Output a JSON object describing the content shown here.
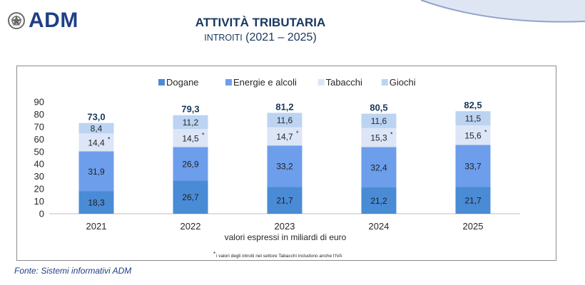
{
  "brand": {
    "logo_text": "ADM"
  },
  "header": {
    "title": "ATTIVITÀ TRIBUTARIA",
    "subtitle_prefix": "INTROITI",
    "subtitle_suffix": "(2021 – 2025)"
  },
  "footer": {
    "source": "Fonte: Sistemi informativi ADM"
  },
  "chart_data": {
    "type": "bar",
    "stacked": true,
    "categories": [
      "2021",
      "2022",
      "2023",
      "2024",
      "2025"
    ],
    "series": [
      {
        "name": "Dogane",
        "color": "#4a8bd6",
        "values": [
          18.3,
          26.7,
          21.7,
          21.2,
          21.7
        ],
        "labels": [
          "18,3",
          "26,7",
          "21,7",
          "21,2",
          "21,7"
        ]
      },
      {
        "name": "Energie e alcoli",
        "color": "#6d9eeb",
        "values": [
          31.9,
          26.9,
          33.2,
          32.4,
          33.7
        ],
        "labels": [
          "31,9",
          "26,9",
          "33,2",
          "32,4",
          "33,7"
        ]
      },
      {
        "name": "Tabacchi",
        "color": "#dce6f7",
        "values": [
          14.4,
          14.5,
          14.7,
          15.3,
          15.6
        ],
        "labels": [
          "14,4",
          "14,5",
          "14,7",
          "15,3",
          "15,6"
        ],
        "asterisk": true
      },
      {
        "name": "Giochi",
        "color": "#bcd4f2",
        "values": [
          8.4,
          11.2,
          11.6,
          11.6,
          11.5
        ],
        "labels": [
          "8,4",
          "11,2",
          "11,6",
          "11,6",
          "11,5"
        ]
      }
    ],
    "totals": [
      "73,0",
      "79,3",
      "81,2",
      "80,5",
      "82,5"
    ],
    "ylim": [
      0,
      90
    ],
    "yticks": [
      0,
      10,
      20,
      30,
      40,
      50,
      60,
      70,
      80,
      90
    ],
    "grid": false,
    "legend": "top",
    "xlabel": "valori espressi in miliardi di euro",
    "asterisk_mark": "*",
    "footnote": "i valori degli introiti nel settore Tabacchi includono anche l'IVA"
  }
}
